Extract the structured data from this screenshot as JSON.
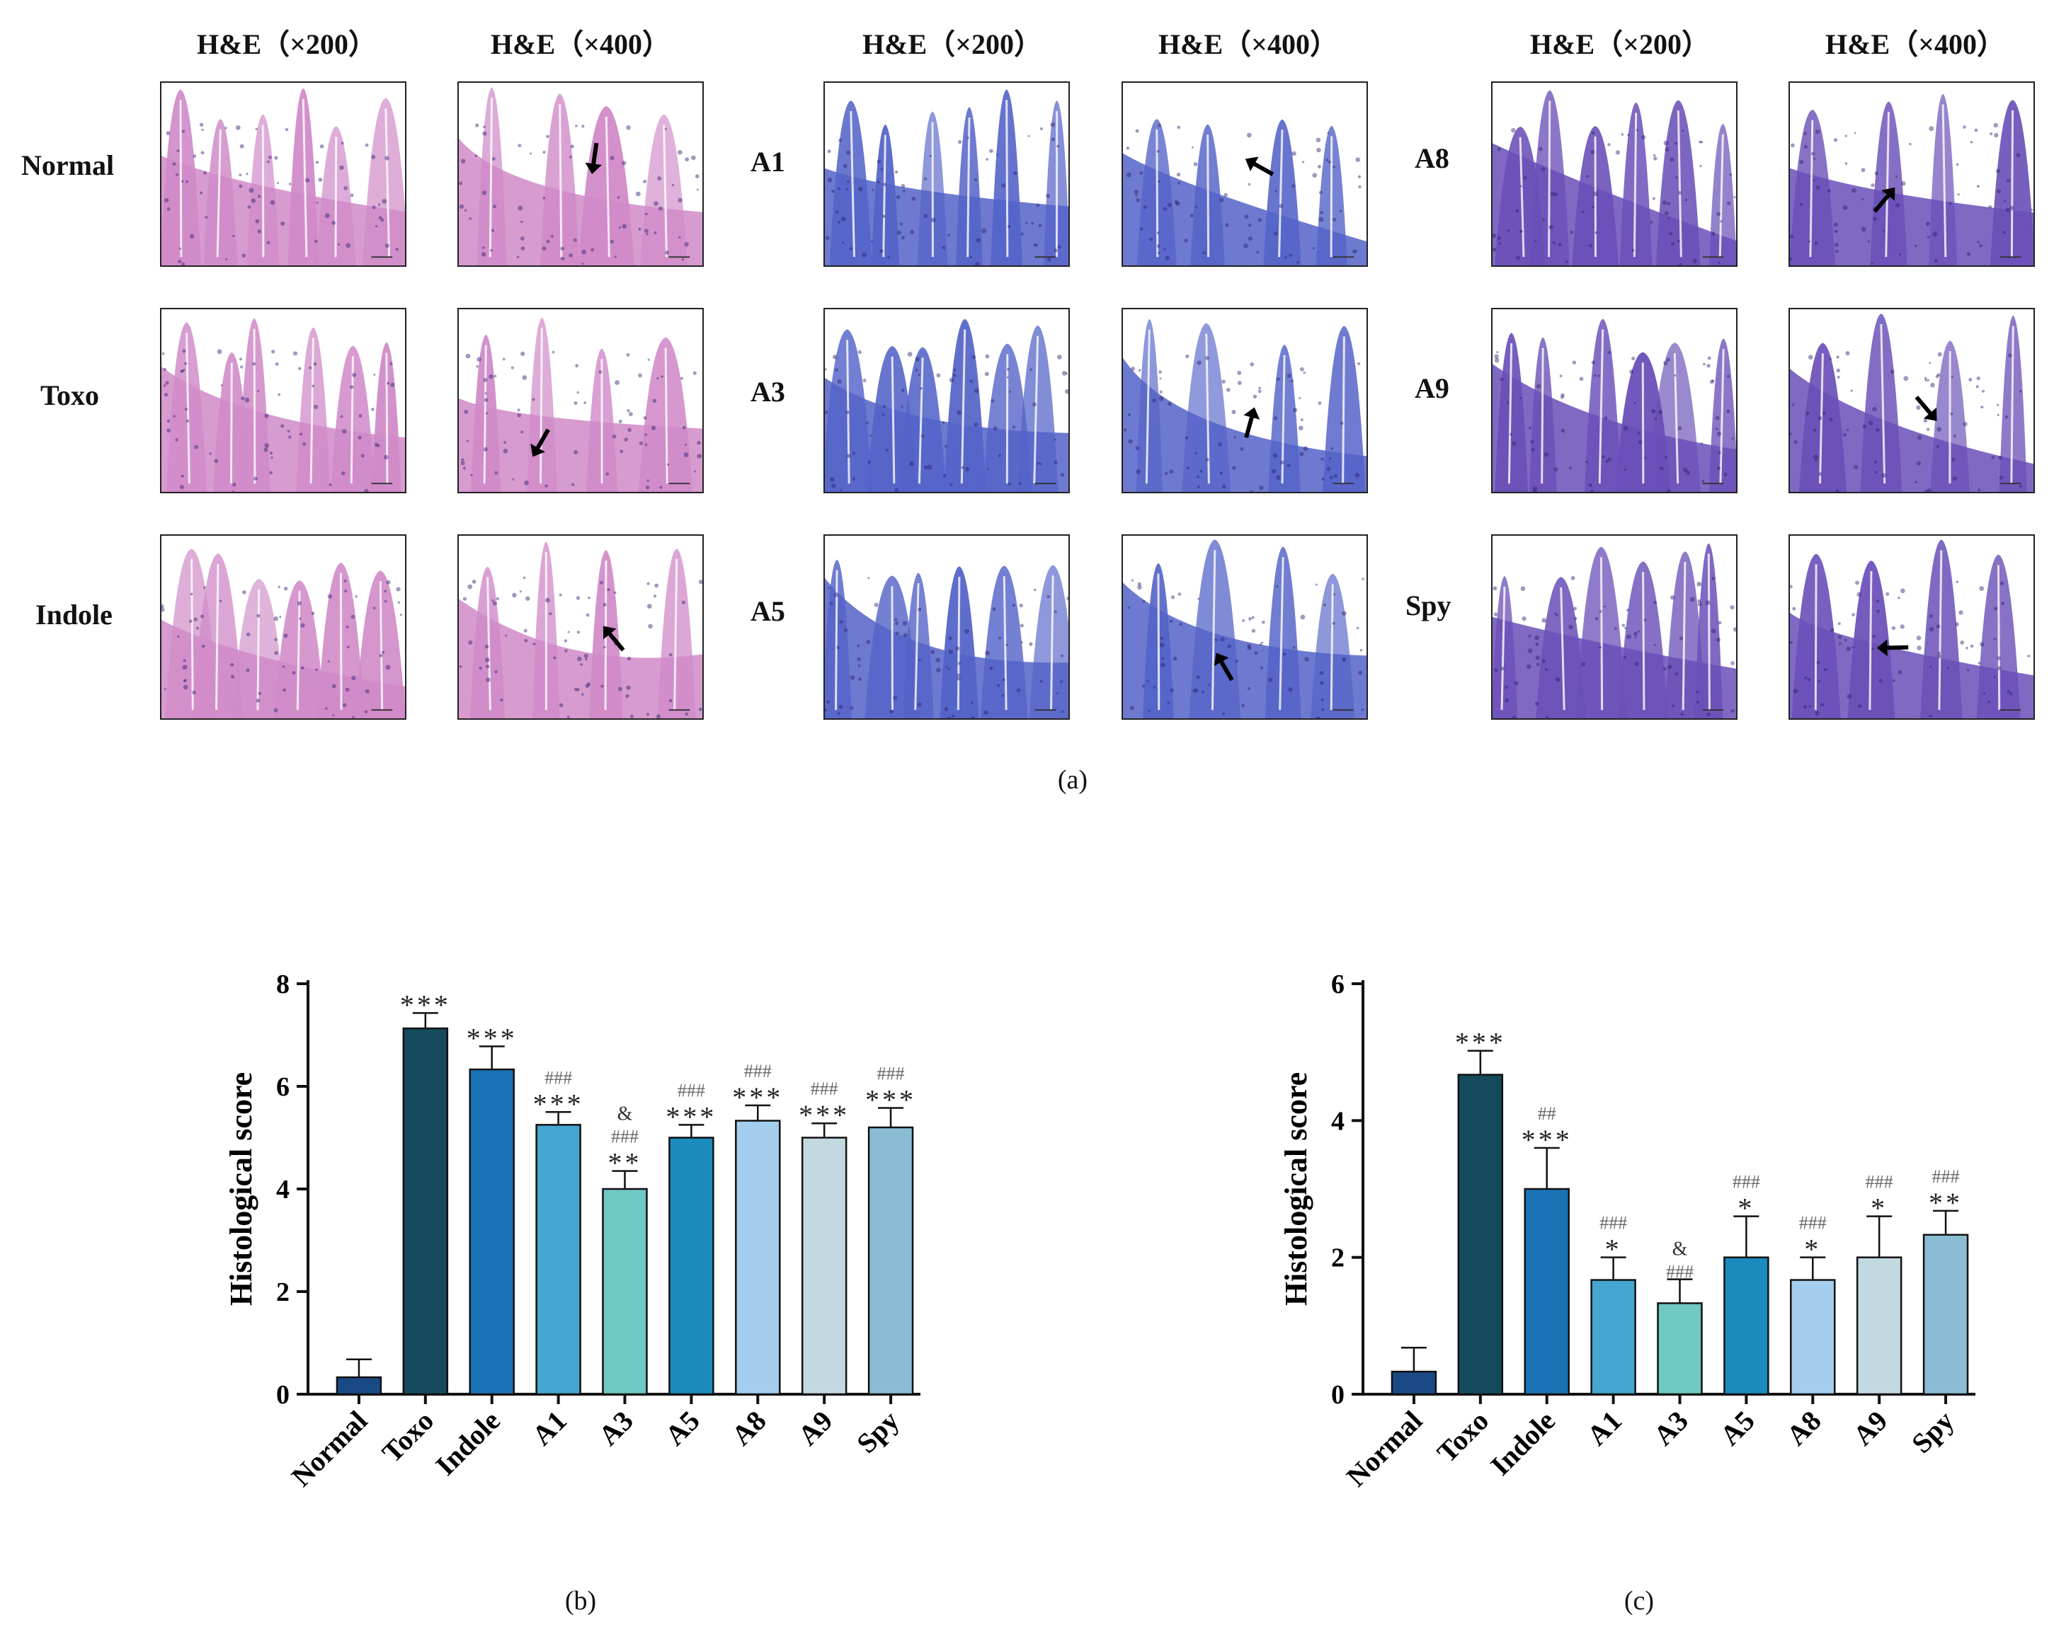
{
  "figure": {
    "headers": [
      "H&E（×200）",
      "H&E（×400）",
      "H&E（×200）",
      "H&E（×400）",
      "H&E（×200）",
      "H&E（×400）"
    ],
    "row_labels": [
      "Normal",
      "Toxo",
      "Indole",
      "A1",
      "A3",
      "A5",
      "A8",
      "A9",
      "Spy"
    ],
    "sublabels": [
      "(a)",
      "(b)",
      "(c)"
    ]
  },
  "colors": {
    "Normal": "#1a4a86",
    "Toxo": "#154a5c",
    "Indole": "#1a72b5",
    "A1": "#45a6d0",
    "A3": "#6ec8c4",
    "A5": "#1b8bbd",
    "A8": "#a4cdee",
    "A9": "#c3d9e2",
    "Spy": "#8abdd4",
    "stain_pink": "#d08ac8",
    "stain_purple": "#6a4fb8",
    "stain_blue": "#5463c8"
  },
  "chart_data": [
    {
      "type": "bar",
      "title": "",
      "ylabel": "Histological score",
      "xlabel": "",
      "ylim": [
        0,
        8
      ],
      "yticks": [
        "0",
        "2",
        "4",
        "6",
        "8"
      ],
      "categories": [
        "Normal",
        "Toxo",
        "Indole",
        "A1",
        "A3",
        "A5",
        "A8",
        "A9",
        "Spy"
      ],
      "values": [
        0.33,
        7.13,
        6.33,
        5.25,
        4.0,
        5.0,
        5.33,
        5.0,
        5.2
      ],
      "errors": [
        0.35,
        0.3,
        0.45,
        0.25,
        0.35,
        0.25,
        0.3,
        0.28,
        0.38
      ],
      "stars": [
        "",
        "***",
        "***",
        "***",
        "**",
        "***",
        "***",
        "***",
        "***"
      ],
      "hashes": [
        "",
        "",
        "",
        "###",
        "###",
        "###",
        "###",
        "###",
        "###"
      ],
      "amps": [
        "",
        "",
        "",
        "",
        "&",
        "",
        "",
        "",
        ""
      ]
    },
    {
      "type": "bar",
      "title": "",
      "ylabel": "Histological score",
      "xlabel": "",
      "ylim": [
        0,
        6
      ],
      "yticks": [
        "0",
        "2",
        "4",
        "6"
      ],
      "categories": [
        "Normal",
        "Toxo",
        "Indole",
        "A1",
        "A3",
        "A5",
        "A8",
        "A9",
        "Spy"
      ],
      "values": [
        0.33,
        4.67,
        3.0,
        1.67,
        1.33,
        2.0,
        1.67,
        2.0,
        2.33
      ],
      "errors": [
        0.35,
        0.35,
        0.6,
        0.33,
        0.35,
        0.6,
        0.33,
        0.6,
        0.35
      ],
      "stars": [
        "",
        "***",
        "***",
        "*",
        "",
        "*",
        "*",
        "*",
        "**"
      ],
      "hashes": [
        "",
        "",
        "##",
        "###",
        "###",
        "###",
        "###",
        "###",
        "###"
      ],
      "amps": [
        "",
        "",
        "",
        "",
        "&",
        "",
        "",
        "",
        ""
      ]
    }
  ]
}
